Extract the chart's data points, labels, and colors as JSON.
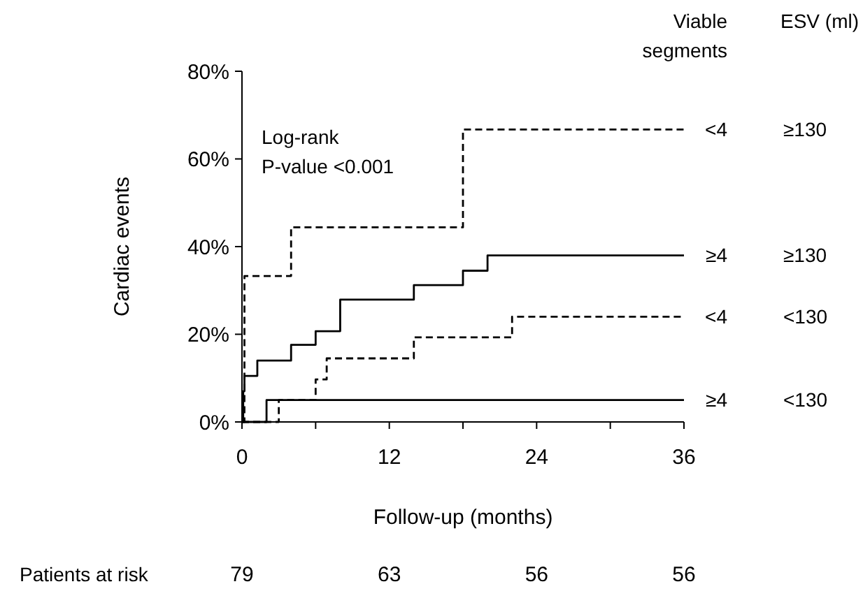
{
  "chart_data": {
    "type": "step",
    "xlabel": "Follow-up (months)",
    "ylabel": "Cardiac events",
    "annotations": [
      "Log-rank\nP-value <0.001",
      "Viable\nsegments",
      "ESV (ml)",
      "Patients at risk",
      "79",
      "63",
      "56",
      "56",
      "≥130",
      "≥130",
      "<130",
      "<130"
    ],
    "series": [
      {
        "name": "<4",
        "color": "#000000",
        "line_style": "dashed",
        "x": [
          0,
          0.2,
          4,
          18,
          36
        ],
        "values": [
          0,
          33.3,
          44.4,
          66.7,
          66.7
        ]
      },
      {
        "name": "≥4",
        "color": "#000000",
        "line_style": "solid",
        "x": [
          0,
          0.1,
          0.2,
          1.25,
          4,
          6,
          8,
          14,
          18,
          20,
          36
        ],
        "values": [
          0,
          7,
          10.5,
          14,
          17.6,
          20.7,
          27.9,
          31.2,
          34.5,
          38,
          38
        ]
      },
      {
        "name": "<4",
        "color": "#000000",
        "line_style": "dashed",
        "x": [
          0,
          3,
          6,
          6.9,
          14,
          22,
          36
        ],
        "values": [
          0,
          5,
          9.7,
          14.5,
          19.3,
          24,
          24
        ]
      },
      {
        "name": "≥4",
        "color": "#000000",
        "line_style": "solid",
        "x": [
          0,
          2,
          36
        ],
        "values": [
          0,
          5,
          5
        ]
      }
    ],
    "xlim": [
      0,
      36
    ],
    "xticks": [
      0,
      {
        "value": 6,
        "label": null
      },
      12,
      {
        "value": 18,
        "label": null
      },
      24,
      {
        "value": 30,
        "label": null
      },
      36
    ],
    "ylim": [
      0,
      80
    ],
    "yticks": [
      {
        "value": 0,
        "label": "0%"
      },
      {
        "value": 20,
        "label": "20%"
      },
      {
        "value": 40,
        "label": "40%"
      },
      {
        "value": 60,
        "label": "60%"
      },
      {
        "value": 80,
        "label": "80%"
      }
    ],
    "grid": false
  }
}
